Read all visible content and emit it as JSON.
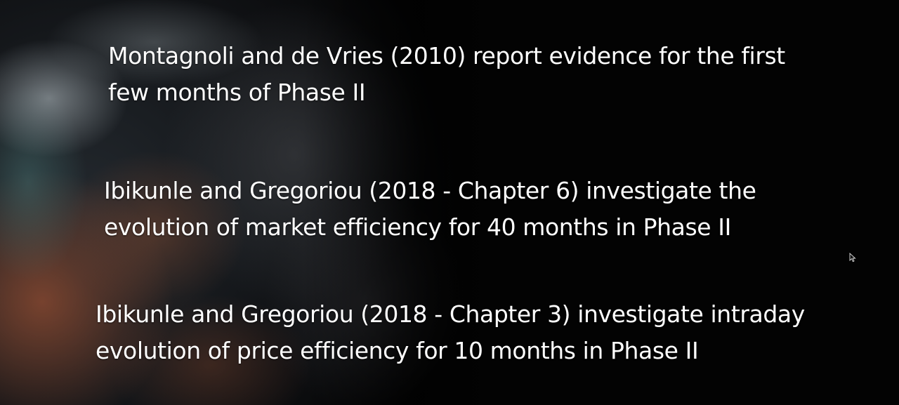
{
  "slide": {
    "paragraphs": [
      {
        "line1": "Montagnoli and de Vries (2010) report evidence for the first",
        "line2": "few months of Phase II"
      },
      {
        "line1": "Ibikunle and Gregoriou (2018 - Chapter 6) investigate the",
        "line2": "evolution of market efficiency for 40 months in Phase II"
      },
      {
        "line1": "Ibikunle and Gregoriou (2018 - Chapter 3) investigate intraday",
        "line2": "evolution of price efficiency for 10 months in Phase II"
      }
    ]
  },
  "background": {
    "description_icon": "earth-from-space-image",
    "base_color": "#030303",
    "text_color": "#ffffff"
  },
  "cursor": {
    "icon": "mouse-pointer-icon"
  }
}
